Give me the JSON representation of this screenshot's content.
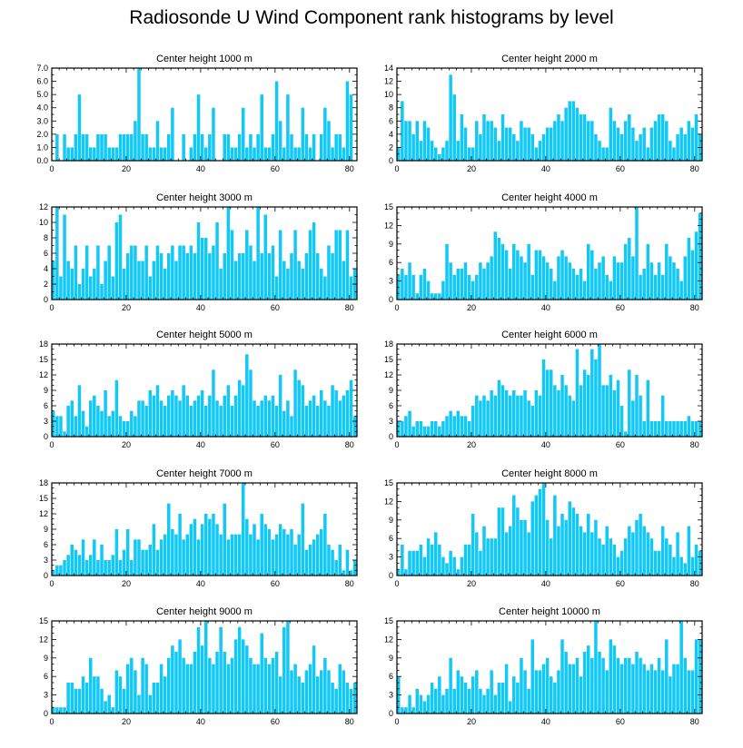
{
  "title": "Radiosonde U Wind Component rank histograms by level",
  "colors": {
    "bar": "#12c8f6",
    "bar_edge": "#0aa6d2",
    "axis": "#000000"
  },
  "chart_data": [
    {
      "type": "bar",
      "title": "Center height 1000 m",
      "xlim": [
        0,
        82
      ],
      "ylim": [
        0,
        7
      ],
      "xticks": [
        0,
        20,
        40,
        60,
        80
      ],
      "yticks": [
        0,
        1,
        2,
        3,
        4,
        5,
        6,
        7
      ],
      "ytick_labels": [
        "0.0",
        "1.0",
        "2.0",
        "3.0",
        "4.0",
        "5.0",
        "6.0",
        "7.0"
      ],
      "values": [
        0,
        2,
        0,
        2,
        1,
        1,
        2,
        5,
        2,
        2,
        1,
        1,
        2,
        2,
        2,
        1,
        1,
        1,
        2,
        2,
        2,
        2,
        3,
        7,
        2,
        2,
        1,
        1,
        3,
        1,
        1,
        2,
        4,
        0,
        0,
        2,
        0,
        1,
        2,
        5,
        2,
        1,
        2,
        4,
        0,
        0,
        2,
        2,
        1,
        1,
        2,
        4,
        1,
        2,
        1,
        2,
        5,
        1,
        1,
        2,
        6,
        3,
        1,
        5,
        2,
        1,
        1,
        4,
        2,
        1,
        2,
        0,
        2,
        4,
        3,
        1,
        2,
        2,
        1,
        6,
        5,
        0
      ]
    },
    {
      "type": "bar",
      "title": "Center height 2000 m",
      "xlim": [
        0,
        82
      ],
      "ylim": [
        0,
        14
      ],
      "xticks": [
        0,
        20,
        40,
        60,
        80
      ],
      "yticks": [
        0,
        2,
        4,
        6,
        8,
        10,
        12,
        14
      ],
      "ytick_labels": [
        "0",
        "2",
        "4",
        "6",
        "8",
        "10",
        "12",
        "14"
      ],
      "values": [
        2,
        9,
        6,
        6,
        4,
        6,
        3,
        6,
        5,
        3,
        2,
        1,
        2,
        3,
        13,
        10,
        3,
        7,
        5,
        2,
        2,
        6,
        4,
        7,
        6,
        6,
        5,
        3,
        7,
        5,
        5,
        4,
        3,
        6,
        5,
        5,
        4,
        2,
        3,
        4,
        5,
        5,
        6,
        7,
        6,
        8,
        9,
        9,
        8,
        7,
        7,
        6,
        6,
        4,
        3,
        2,
        2,
        8,
        6,
        5,
        4,
        6,
        7,
        5,
        3,
        4,
        5,
        2,
        5,
        6,
        7,
        7,
        6,
        3,
        2,
        4,
        5,
        4,
        6,
        5,
        7,
        4
      ]
    },
    {
      "type": "bar",
      "title": "Center height 3000 m",
      "xlim": [
        0,
        82
      ],
      "ylim": [
        0,
        12
      ],
      "xticks": [
        0,
        20,
        40,
        60,
        80
      ],
      "yticks": [
        0,
        2,
        4,
        6,
        8,
        10,
        12
      ],
      "ytick_labels": [
        "0",
        "2",
        "4",
        "6",
        "8",
        "10",
        "12"
      ],
      "values": [
        5,
        12,
        3,
        11,
        5,
        4,
        7,
        2,
        4,
        7,
        3,
        4,
        7,
        2,
        5,
        7,
        3,
        10,
        11,
        4,
        6,
        7,
        7,
        5,
        5,
        7,
        3,
        5,
        7,
        6,
        4,
        6,
        7,
        5,
        7,
        7,
        6,
        7,
        6,
        10,
        8,
        8,
        6,
        7,
        10,
        4,
        6,
        12,
        9,
        5,
        6,
        6,
        9,
        7,
        5,
        12,
        6,
        11,
        6,
        7,
        3,
        9,
        5,
        4,
        6,
        9,
        5,
        4,
        6,
        9,
        10,
        6,
        4,
        3,
        7,
        6,
        9,
        9,
        5,
        9,
        3,
        4
      ]
    },
    {
      "type": "bar",
      "title": "Center height 4000 m",
      "xlim": [
        0,
        82
      ],
      "ylim": [
        0,
        15
      ],
      "xticks": [
        0,
        20,
        40,
        60,
        80
      ],
      "yticks": [
        0,
        3,
        6,
        9,
        12,
        15
      ],
      "ytick_labels": [
        "0",
        "3",
        "6",
        "9",
        "12",
        "15"
      ],
      "values": [
        4,
        5,
        4,
        6,
        4,
        1,
        4,
        5,
        3,
        1,
        1,
        1,
        3,
        9,
        6,
        4,
        5,
        5,
        6,
        4,
        3,
        4,
        6,
        5,
        6,
        7,
        11,
        10,
        9,
        8,
        5,
        9,
        8,
        7,
        6,
        9,
        4,
        8,
        8,
        7,
        6,
        5,
        3,
        7,
        8,
        7,
        6,
        5,
        4,
        5,
        3,
        9,
        8,
        5,
        6,
        7,
        4,
        3,
        7,
        6,
        6,
        9,
        10,
        7,
        15,
        4,
        5,
        9,
        6,
        4,
        6,
        4,
        9,
        7,
        6,
        5,
        3,
        7,
        10,
        8,
        11,
        14
      ]
    },
    {
      "type": "bar",
      "title": "Center height 5000 m",
      "xlim": [
        0,
        82
      ],
      "ylim": [
        0,
        18
      ],
      "xticks": [
        0,
        20,
        40,
        60,
        80
      ],
      "yticks": [
        0,
        3,
        6,
        9,
        12,
        15,
        18
      ],
      "ytick_labels": [
        "0",
        "3",
        "6",
        "9",
        "12",
        "15",
        "18"
      ],
      "values": [
        5,
        4,
        4,
        1,
        6,
        7,
        4,
        10,
        5,
        2,
        7,
        8,
        6,
        5,
        9,
        4,
        5,
        11,
        4,
        3,
        3,
        5,
        4,
        7,
        7,
        6,
        9,
        8,
        10,
        7,
        6,
        8,
        9,
        8,
        7,
        10,
        8,
        6,
        7,
        8,
        9,
        6,
        8,
        13,
        7,
        6,
        8,
        10,
        6,
        8,
        11,
        10,
        16,
        13,
        7,
        6,
        7,
        8,
        7,
        8,
        6,
        12,
        5,
        7,
        4,
        13,
        11,
        10,
        6,
        7,
        8,
        6,
        9,
        7,
        6,
        10,
        9,
        7,
        8,
        9,
        11,
        4
      ]
    },
    {
      "type": "bar",
      "title": "Center height 6000 m",
      "xlim": [
        0,
        82
      ],
      "ylim": [
        0,
        18
      ],
      "xticks": [
        0,
        20,
        40,
        60,
        80
      ],
      "yticks": [
        0,
        3,
        6,
        9,
        12,
        15,
        18
      ],
      "ytick_labels": [
        "0",
        "3",
        "6",
        "9",
        "12",
        "15",
        "18"
      ],
      "values": [
        3,
        3,
        4,
        5,
        2,
        3,
        3,
        2,
        2,
        3,
        3,
        2,
        3,
        4,
        5,
        4,
        5,
        4,
        4,
        3,
        6,
        8,
        7,
        8,
        7,
        9,
        8,
        11,
        10,
        9,
        8,
        9,
        8,
        8,
        9,
        7,
        6,
        9,
        8,
        15,
        13,
        13,
        10,
        9,
        12,
        10,
        8,
        7,
        17,
        10,
        13,
        12,
        17,
        15,
        18,
        10,
        10,
        12,
        9,
        11,
        6,
        1,
        13,
        7,
        12,
        8,
        3,
        11,
        3,
        3,
        3,
        8,
        3,
        3,
        3,
        3,
        3,
        3,
        4,
        3,
        3,
        3
      ]
    },
    {
      "type": "bar",
      "title": "Center height 7000 m",
      "xlim": [
        0,
        82
      ],
      "ylim": [
        0,
        18
      ],
      "xticks": [
        0,
        20,
        40,
        60,
        80
      ],
      "yticks": [
        0,
        3,
        6,
        9,
        12,
        15,
        18
      ],
      "ytick_labels": [
        "0",
        "3",
        "6",
        "9",
        "12",
        "15",
        "18"
      ],
      "values": [
        1,
        2,
        2,
        3,
        4,
        6,
        5,
        4,
        7,
        3,
        4,
        7,
        3,
        6,
        3,
        3,
        4,
        9,
        3,
        5,
        9,
        3,
        7,
        7,
        5,
        5,
        6,
        10,
        5,
        7,
        8,
        14,
        9,
        8,
        12,
        7,
        8,
        10,
        11,
        7,
        10,
        12,
        11,
        12,
        10,
        8,
        14,
        7,
        8,
        8,
        8,
        18,
        11,
        8,
        10,
        7,
        12,
        10,
        9,
        7,
        8,
        10,
        9,
        8,
        9,
        6,
        8,
        14,
        5,
        6,
        7,
        8,
        9,
        12,
        6,
        5,
        3,
        6,
        1,
        5,
        1,
        3
      ]
    },
    {
      "type": "bar",
      "title": "Center height 8000 m",
      "xlim": [
        0,
        82
      ],
      "ylim": [
        0,
        15
      ],
      "xticks": [
        0,
        20,
        40,
        60,
        80
      ],
      "yticks": [
        0,
        3,
        6,
        9,
        12,
        15
      ],
      "ytick_labels": [
        "0",
        "3",
        "6",
        "9",
        "12",
        "15"
      ],
      "values": [
        1,
        5,
        1,
        4,
        4,
        4,
        5,
        3,
        6,
        5,
        7,
        5,
        3,
        2,
        4,
        3,
        1,
        3,
        5,
        5,
        10,
        7,
        4,
        8,
        6,
        6,
        6,
        11,
        11,
        7,
        8,
        13,
        11,
        9,
        9,
        7,
        12,
        13,
        14,
        15,
        9,
        6,
        13,
        8,
        10,
        9,
        12,
        11,
        10,
        8,
        7,
        10,
        7,
        9,
        6,
        5,
        8,
        6,
        5,
        3,
        4,
        6,
        8,
        7,
        9,
        10,
        8,
        7,
        6,
        4,
        4,
        8,
        6,
        5,
        3,
        7,
        3,
        2,
        8,
        3,
        5,
        4
      ]
    },
    {
      "type": "bar",
      "title": "Center height 9000 m",
      "xlim": [
        0,
        82
      ],
      "ylim": [
        0,
        15
      ],
      "xticks": [
        0,
        20,
        40,
        60,
        80
      ],
      "yticks": [
        0,
        3,
        6,
        9,
        12,
        15
      ],
      "ytick_labels": [
        "0",
        "3",
        "6",
        "9",
        "12",
        "15"
      ],
      "values": [
        1,
        1,
        1,
        1,
        5,
        5,
        4,
        4,
        6,
        5,
        9,
        6,
        6,
        4,
        2,
        3,
        1,
        7,
        6,
        4,
        8,
        9,
        7,
        3,
        9,
        8,
        3,
        5,
        5,
        8,
        6,
        9,
        11,
        10,
        12,
        9,
        8,
        8,
        10,
        14,
        11,
        15,
        9,
        8,
        10,
        14,
        10,
        8,
        9,
        12,
        14,
        12,
        11,
        9,
        8,
        8,
        13,
        9,
        8,
        9,
        10,
        6,
        14,
        15,
        7,
        8,
        6,
        5,
        7,
        8,
        11,
        6,
        7,
        9,
        7,
        5,
        4,
        8,
        7,
        5,
        4,
        5
      ]
    },
    {
      "type": "bar",
      "title": "Center height 10000 m",
      "xlim": [
        0,
        82
      ],
      "ylim": [
        0,
        15
      ],
      "xticks": [
        0,
        20,
        40,
        60,
        80
      ],
      "yticks": [
        0,
        3,
        6,
        9,
        12,
        15
      ],
      "ytick_labels": [
        "0",
        "3",
        "6",
        "9",
        "12",
        "15"
      ],
      "values": [
        6,
        1,
        1,
        3,
        1,
        4,
        3,
        2,
        3,
        5,
        4,
        6,
        3,
        4,
        9,
        4,
        7,
        6,
        5,
        4,
        6,
        7,
        4,
        3,
        4,
        7,
        3,
        5,
        5,
        8,
        2,
        6,
        5,
        9,
        7,
        4,
        12,
        7,
        7,
        8,
        9,
        6,
        5,
        7,
        12,
        10,
        8,
        8,
        9,
        6,
        10,
        11,
        9,
        15,
        10,
        9,
        7,
        12,
        11,
        9,
        8,
        9,
        9,
        8,
        10,
        9,
        8,
        7,
        8,
        7,
        9,
        7,
        12,
        6,
        8,
        8,
        15,
        9,
        7,
        7,
        12,
        12
      ]
    }
  ]
}
